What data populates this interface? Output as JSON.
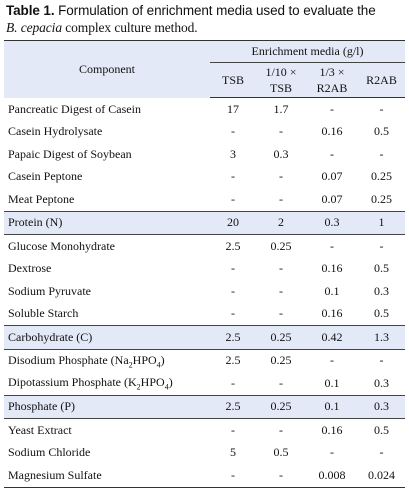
{
  "caption": {
    "label": "Table 1.",
    "text": " Formulation of enrichment media used to evaluate the",
    "organism": "B. cepacia",
    "text2": " complex culture method."
  },
  "header": {
    "component": "Component",
    "media": "Enrichment media (g/l)",
    "columns": [
      {
        "line1": "TSB",
        "line2": ""
      },
      {
        "line1": "1/10 ×",
        "line2": "TSB"
      },
      {
        "line1": "1/3 ×",
        "line2": "R2AB"
      },
      {
        "line1": "R2AB",
        "line2": ""
      }
    ]
  },
  "rows": [
    {
      "name": "Pancreatic Digest of Casein",
      "values": [
        "17",
        "1.7",
        "-",
        "-"
      ]
    },
    {
      "name": "Casein Hydrolysate",
      "values": [
        "-",
        "-",
        "0.16",
        "0.5"
      ]
    },
    {
      "name": "Papaic Digest of Soybean",
      "values": [
        "3",
        "0.3",
        "-",
        "-"
      ]
    },
    {
      "name": "Casein Peptone",
      "values": [
        "-",
        "-",
        "0.07",
        "0.25"
      ]
    },
    {
      "name": "Meat Peptone",
      "values": [
        "-",
        "-",
        "0.07",
        "0.25"
      ]
    },
    {
      "name": "Protein (N)",
      "values": [
        "20",
        "2",
        "0.3",
        "1"
      ]
    },
    {
      "name": "Glucose Monohydrate",
      "values": [
        "2.5",
        "0.25",
        "-",
        "-"
      ]
    },
    {
      "name": "Dextrose",
      "values": [
        "-",
        "-",
        "0.16",
        "0.5"
      ]
    },
    {
      "name": "Sodium Pyruvate",
      "values": [
        "-",
        "-",
        "0.1",
        "0.3"
      ]
    },
    {
      "name": "Soluble Starch",
      "values": [
        "-",
        "-",
        "0.16",
        "0.5"
      ]
    },
    {
      "name": "Carbohydrate (C)",
      "values": [
        "2.5",
        "0.25",
        "0.42",
        "1.3"
      ]
    },
    {
      "name_parts": [
        "Disodium Phosphate (Na",
        "2",
        "HPO",
        "4",
        ")"
      ],
      "values": [
        "2.5",
        "0.25",
        "-",
        "-"
      ]
    },
    {
      "name_parts": [
        "Dipotassium Phosphate (K",
        "2",
        "HPO",
        "4",
        ")"
      ],
      "values": [
        "-",
        "-",
        "0.1",
        "0.3"
      ]
    },
    {
      "name": "Phosphate (P)",
      "values": [
        "2.5",
        "0.25",
        "0.1",
        "0.3"
      ]
    },
    {
      "name": "Yeast Extract",
      "values": [
        "-",
        "-",
        "0.16",
        "0.5"
      ]
    },
    {
      "name": "Sodium Chloride",
      "values": [
        "5",
        "0.5",
        "-",
        "-"
      ]
    },
    {
      "name": "Magnesium Sulfate",
      "values": [
        "-",
        "-",
        "0.008",
        "0.024"
      ]
    }
  ]
}
